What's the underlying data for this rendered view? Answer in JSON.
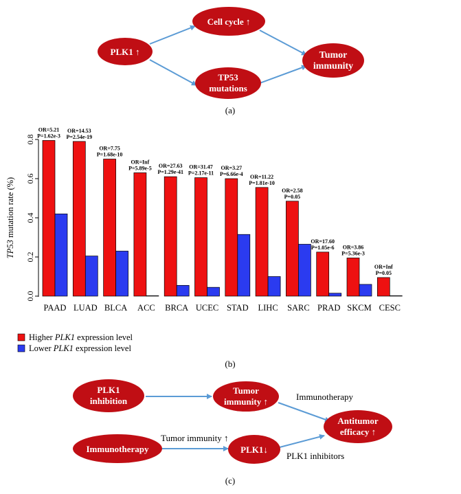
{
  "panel_a": {
    "label": "(a)",
    "nodes": {
      "plk1": "PLK1 ↑",
      "cell_cycle": "Cell cycle ↑",
      "tp53_line1": "TP53",
      "tp53_line2": "mutations",
      "tumor_line1": "Tumor",
      "tumor_line2": "immunity"
    }
  },
  "panel_b": {
    "label": "(b)"
  },
  "panel_c": {
    "label": "(c)",
    "nodes": {
      "inhibition_line1": "PLK1",
      "inhibition_line2": "inhibition",
      "tumor_imm_line1": "Tumor",
      "tumor_imm_line2": "immunity ↑",
      "immunotherapy": "Immunotherapy",
      "plk1_down": "PLK1↓",
      "antitumor_line1": "Antitumor",
      "antitumor_line2": "efficacy ↑"
    },
    "edge_labels": {
      "immunotherapy": "Immunotherapy",
      "tumor_immunity_up": "Tumor immunity ↑",
      "plk1_inhibitors": "PLK1 inhibitors"
    }
  },
  "colors": {
    "node_fill": "#c00e14",
    "arrow": "#5b9bd5",
    "bar_high": "#ee1111",
    "bar_low": "#2b3bf0"
  },
  "chart_data": {
    "type": "bar",
    "ylabel_italic": "TP53",
    "ylabel_rest": " mutation rate (%)",
    "ylim": [
      0,
      0.8
    ],
    "yticks": [
      "0.0",
      "0.2",
      "0.4",
      "0.6",
      "0.8"
    ],
    "categories": [
      "PAAD",
      "LUAD",
      "BLCA",
      "ACC",
      "BRCA",
      "UCEC",
      "STAD",
      "LIHC",
      "SARC",
      "PRAD",
      "SKCM",
      "CESC"
    ],
    "series": [
      {
        "name": "Higher PLK1 expression level",
        "legend_pre": "Higher ",
        "legend_italic": "PLK1",
        "legend_post": " expression level",
        "values": [
          0.795,
          0.79,
          0.7,
          0.63,
          0.61,
          0.605,
          0.6,
          0.555,
          0.485,
          0.225,
          0.195,
          0.095
        ]
      },
      {
        "name": "Lower PLK1 expression level",
        "legend_pre": "Lower ",
        "legend_italic": "PLK1",
        "legend_post": " expression level",
        "values": [
          0.42,
          0.205,
          0.23,
          0.0,
          0.055,
          0.045,
          0.315,
          0.1,
          0.265,
          0.015,
          0.06,
          0.0
        ]
      }
    ],
    "annotations": [
      {
        "or": "OR=5.21",
        "p": "P=1.62e-3"
      },
      {
        "or": "OR=14.53",
        "p": "P=2.54e-19"
      },
      {
        "or": "OR=7.75",
        "p": "P=1.68e-10"
      },
      {
        "or": "OR=Inf",
        "p": "P=5.89e-5"
      },
      {
        "or": "OR=27.63",
        "p": "P=1.29e-41"
      },
      {
        "or": "OR=31.47",
        "p": "P=2.17e-11"
      },
      {
        "or": "OR=3.27",
        "p": "P=6.66e-4"
      },
      {
        "or": "OR=11.22",
        "p": "P=1.81e-10"
      },
      {
        "or": "OR=2.58",
        "p": "P=0.05"
      },
      {
        "or": "OR=17.60",
        "p": "P=1.05e-6"
      },
      {
        "or": "OR=3.86",
        "p": "P=5.36e-3"
      },
      {
        "or": "OR=Inf",
        "p": "P=0.05"
      }
    ]
  }
}
